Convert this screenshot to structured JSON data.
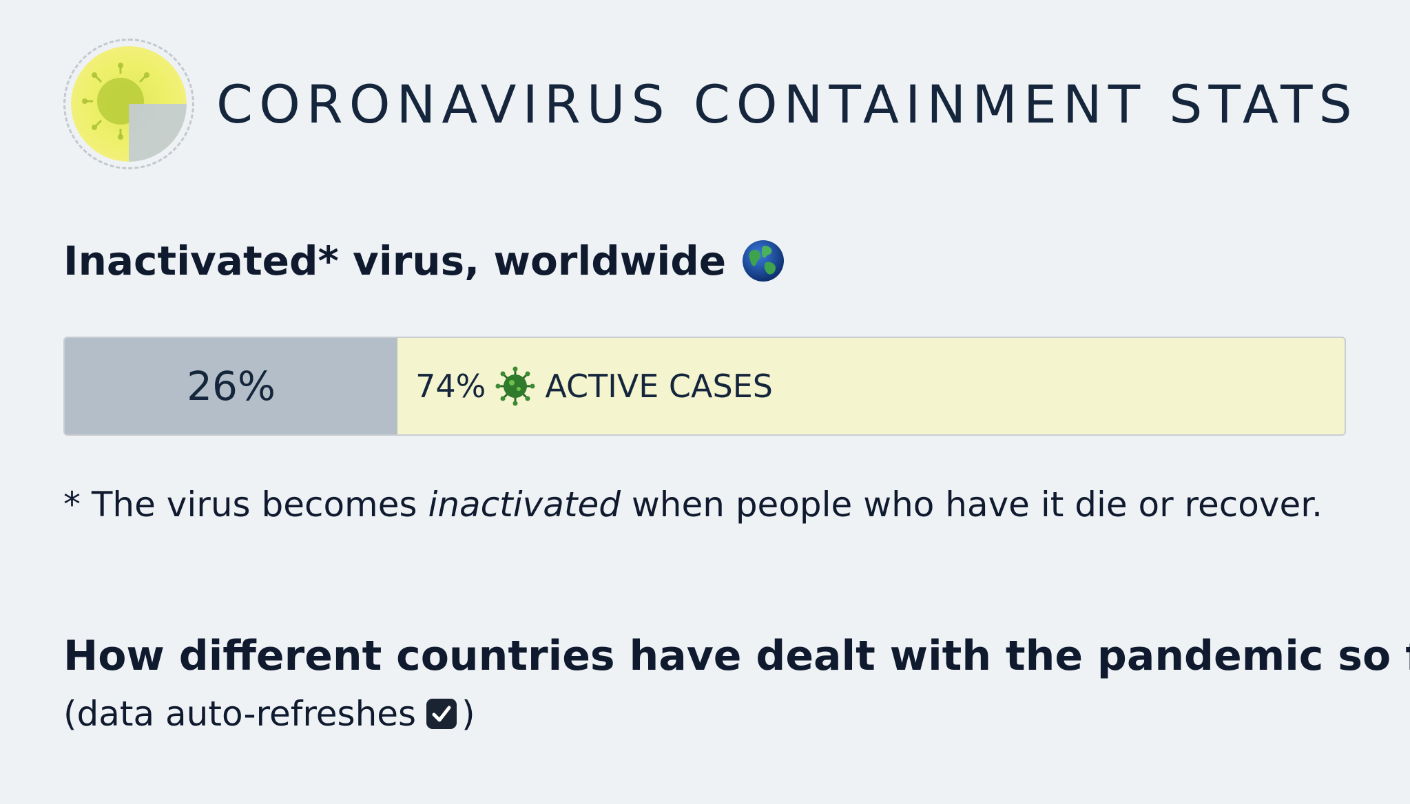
{
  "header": {
    "title": "CORONAVIRUS CONTAINMENT STATS",
    "logo_icon": "virus-pie-logo-icon"
  },
  "inactivated_section": {
    "heading": "Inactivated* virus, worldwide",
    "heading_icon": "globe-icon"
  },
  "progress": {
    "inactive_fraction": 0.26,
    "inactive_label": "26%",
    "active_percent": "74%",
    "active_icon": "virus-icon",
    "active_label": "ACTIVE CASES",
    "colors": {
      "inactive": "#b3bec8",
      "active": "#f4f4cf"
    }
  },
  "footnote": {
    "prefix": "* The virus becomes ",
    "emphasis": "inactivated",
    "suffix": " when people who have it die or recover."
  },
  "countries_section": {
    "heading": "How different countries have dealt with the pandemic so far",
    "subnote_prefix": "(data auto-refreshes",
    "subnote_icon": "checkbox-checked-icon",
    "subnote_suffix": ")"
  }
}
